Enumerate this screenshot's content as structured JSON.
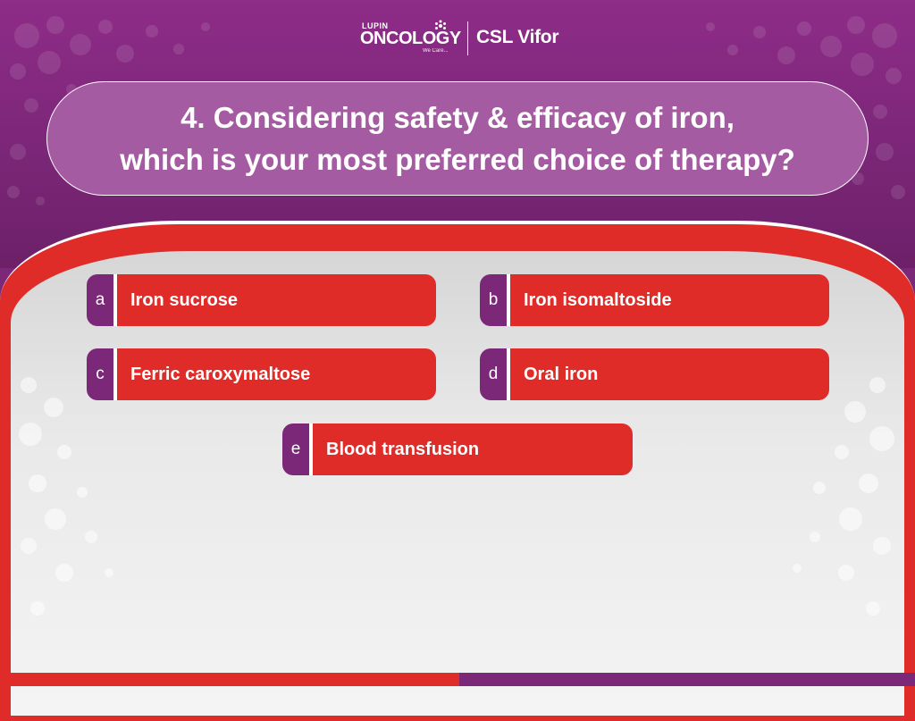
{
  "header": {
    "lupin_brand": "LUPIN",
    "lupin_name": "ONCOLOGY",
    "lupin_tagline": "We Care...",
    "partner_name": "CSL Vifor"
  },
  "question": {
    "text": "4. Considering safety & efficacy of iron,\nwhich is your most preferred choice of therapy?"
  },
  "options": [
    {
      "letter": "a",
      "label": "Iron sucrose"
    },
    {
      "letter": "b",
      "label": "Iron isomaltoside"
    },
    {
      "letter": "c",
      "label": "Ferric caroxymaltose"
    },
    {
      "letter": "d",
      "label": "Oral iron"
    },
    {
      "letter": "e",
      "label": "Blood transfusion"
    }
  ],
  "colors": {
    "purple": "#7b2878",
    "red": "#e02c28",
    "question_fill": "#a45ba2"
  }
}
